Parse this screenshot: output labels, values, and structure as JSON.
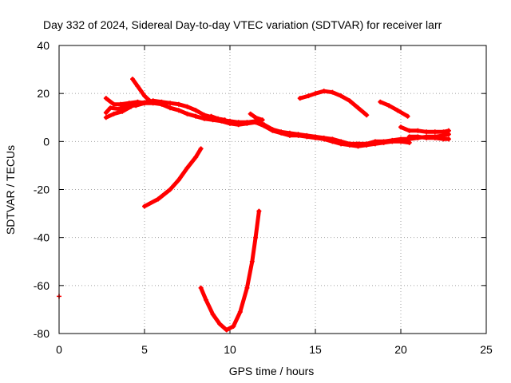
{
  "chart_data": {
    "type": "scatter",
    "title": "Day 332 of 2024, Sidereal Day-to-day VTEC variation (SDTVAR) for receiver larr",
    "xlabel": "GPS time / hours",
    "ylabel": "SDTVAR / TECUs",
    "xlim": [
      0,
      25
    ],
    "ylim": [
      -80,
      40
    ],
    "xticks": [
      0,
      5,
      10,
      15,
      20,
      25
    ],
    "yticks": [
      -80,
      -60,
      -40,
      -20,
      0,
      20,
      40
    ],
    "xtick_labels": [
      "0",
      "5",
      "10",
      "15",
      "20",
      "25"
    ],
    "ytick_labels": [
      "-80",
      "-60",
      "-40",
      "-20",
      "0",
      "20",
      "40"
    ],
    "grid": true,
    "marker": "+",
    "color": "#ff0000",
    "series": [
      {
        "points": [
          [
            0.0,
            -64.5
          ]
        ]
      },
      {
        "points": [
          [
            2.75,
            18
          ],
          [
            3.2,
            15.5
          ],
          [
            3.6,
            15.5
          ],
          [
            4.1,
            16
          ],
          [
            4.6,
            16.5
          ],
          [
            5.0,
            16
          ],
          [
            5.5,
            17
          ],
          [
            6.0,
            16.5
          ],
          [
            6.5,
            16
          ],
          [
            7.0,
            15.5
          ],
          [
            7.5,
            14.5
          ],
          [
            8.0,
            13
          ],
          [
            8.5,
            11
          ],
          [
            9.0,
            10
          ],
          [
            9.5,
            9
          ],
          [
            10.0,
            8.5
          ],
          [
            10.5,
            8
          ],
          [
            11.0,
            8
          ],
          [
            11.5,
            8.5
          ],
          [
            12.0,
            7
          ],
          [
            12.5,
            5
          ],
          [
            13.0,
            4
          ],
          [
            13.5,
            3.5
          ],
          [
            14.0,
            3
          ],
          [
            14.5,
            2.5
          ],
          [
            15.0,
            2
          ],
          [
            15.5,
            1.5
          ],
          [
            16.0,
            1
          ],
          [
            16.5,
            0
          ],
          [
            17.0,
            -1
          ],
          [
            17.5,
            -1
          ],
          [
            18.0,
            -1
          ],
          [
            18.5,
            0
          ],
          [
            19.0,
            0
          ],
          [
            19.5,
            0.5
          ],
          [
            20.0,
            1
          ],
          [
            20.5,
            1
          ],
          [
            21.0,
            1.5
          ],
          [
            21.5,
            2
          ],
          [
            22.0,
            2
          ],
          [
            22.5,
            2.5
          ],
          [
            22.8,
            3
          ]
        ]
      },
      {
        "points": [
          [
            2.75,
            12
          ],
          [
            3.0,
            14
          ],
          [
            3.5,
            13.5
          ],
          [
            4.0,
            15
          ],
          [
            4.5,
            15
          ],
          [
            5.0,
            16
          ],
          [
            5.5,
            16
          ],
          [
            6.0,
            15.5
          ],
          [
            6.5,
            14
          ],
          [
            7.0,
            13
          ],
          [
            7.5,
            11.5
          ],
          [
            8.0,
            10.5
          ],
          [
            8.5,
            9.5
          ],
          [
            9.0,
            9
          ],
          [
            9.5,
            8.5
          ],
          [
            10.0,
            7.5
          ],
          [
            10.5,
            7
          ],
          [
            11.0,
            7.5
          ],
          [
            11.5,
            8
          ],
          [
            12.0,
            6.5
          ],
          [
            12.5,
            4.5
          ],
          [
            13.0,
            3.5
          ],
          [
            13.5,
            2.5
          ],
          [
            14.0,
            2.5
          ],
          [
            14.5,
            2
          ],
          [
            15.0,
            1.5
          ],
          [
            15.5,
            1
          ],
          [
            16.0,
            0
          ],
          [
            16.5,
            -1
          ],
          [
            17.0,
            -1.5
          ],
          [
            17.5,
            -2
          ],
          [
            18.0,
            -1.5
          ],
          [
            18.5,
            -1
          ],
          [
            19.0,
            -0.5
          ],
          [
            19.5,
            0
          ],
          [
            20.0,
            0
          ],
          [
            20.5,
            -0.5
          ]
        ]
      },
      {
        "points": [
          [
            2.75,
            10
          ],
          [
            3.2,
            11.5
          ],
          [
            3.7,
            12.5
          ],
          [
            4.2,
            14.5
          ],
          [
            4.6,
            16
          ],
          [
            5.2,
            16.5
          ]
        ]
      },
      {
        "points": [
          [
            4.3,
            26
          ],
          [
            4.6,
            23
          ],
          [
            5.0,
            19
          ],
          [
            5.3,
            17
          ]
        ]
      },
      {
        "points": [
          [
            8.9,
            10.5
          ],
          [
            9.3,
            9.5
          ],
          [
            9.7,
            9
          ]
        ]
      },
      {
        "points": [
          [
            11.2,
            11.5
          ],
          [
            11.5,
            10
          ],
          [
            11.9,
            9
          ]
        ]
      },
      {
        "points": [
          [
            5.0,
            -27
          ],
          [
            5.8,
            -24
          ],
          [
            6.5,
            -20
          ],
          [
            7.0,
            -16
          ],
          [
            7.5,
            -11
          ],
          [
            8.0,
            -6.5
          ],
          [
            8.3,
            -3
          ]
        ]
      },
      {
        "points": [
          [
            8.3,
            -61
          ],
          [
            8.6,
            -66
          ],
          [
            9.0,
            -72
          ],
          [
            9.4,
            -76
          ],
          [
            9.8,
            -78.5
          ],
          [
            10.2,
            -77
          ],
          [
            10.6,
            -71
          ],
          [
            11.0,
            -61
          ],
          [
            11.3,
            -50
          ],
          [
            11.5,
            -40
          ],
          [
            11.7,
            -29
          ]
        ]
      },
      {
        "points": [
          [
            14.1,
            18
          ],
          [
            14.6,
            19
          ],
          [
            15.0,
            20
          ],
          [
            15.5,
            21
          ],
          [
            16.0,
            20.5
          ],
          [
            16.5,
            19
          ],
          [
            17.0,
            17
          ],
          [
            17.5,
            14
          ],
          [
            18.0,
            11
          ]
        ]
      },
      {
        "points": [
          [
            18.8,
            16.5
          ],
          [
            19.3,
            15
          ],
          [
            19.8,
            13
          ],
          [
            20.4,
            10.5
          ]
        ]
      },
      {
        "points": [
          [
            20.0,
            6
          ],
          [
            20.5,
            4.5
          ],
          [
            21.0,
            4.5
          ],
          [
            21.5,
            4
          ],
          [
            22.0,
            4
          ],
          [
            22.5,
            4
          ],
          [
            22.8,
            4.5
          ]
        ]
      },
      {
        "points": [
          [
            20.5,
            2
          ],
          [
            21.0,
            2
          ],
          [
            21.5,
            1.5
          ],
          [
            22.0,
            1.5
          ],
          [
            22.5,
            1
          ],
          [
            22.8,
            1
          ]
        ]
      }
    ]
  }
}
